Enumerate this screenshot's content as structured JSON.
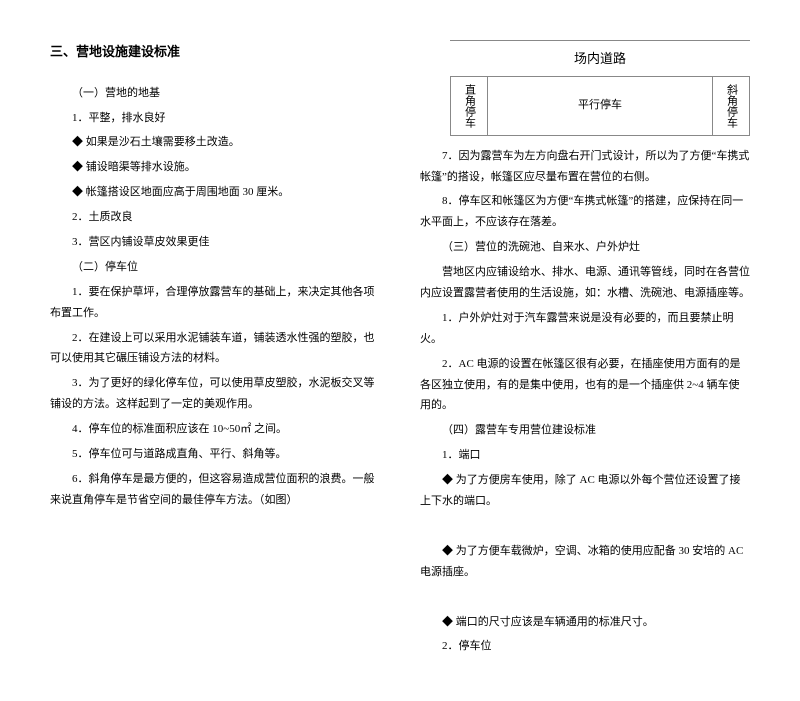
{
  "left": {
    "title": "三、营地设施建设标准",
    "p": [
      "（一）营地的地基",
      "1．平整，排水良好",
      "◆ 如果是沙石土壤需要移土改造。",
      "◆ 铺设暗渠等排水设施。",
      "◆ 帐篷搭设区地面应高于周围地面 30 厘米。",
      "2．土质改良",
      "3．营区内铺设草皮效果更佳",
      "（二）停车位",
      "1．要在保护草坪，合理停放露营车的基础上，来决定其他各项布置工作。",
      "2．在建设上可以采用水泥铺装车道，铺装透水性强的塑胶，也可以使用其它碾压铺设方法的材料。",
      "3．为了更好的绿化停车位，可以使用草皮塑胶，水泥板交叉等铺设的方法。这样起到了一定的美观作用。",
      "4．停车位的标准面积应该在 10~50㎡ 之间。",
      "5．停车位可与道路成直角、平行、斜角等。",
      "6．斜角停车是最方便的，但这容易造成营位面积的浪费。一般来说直角停车是节省空间的最佳停车方法。（如图）"
    ]
  },
  "right": {
    "diagram": {
      "road": "场内道路",
      "left": "直角停车",
      "mid": "平行停车",
      "right": "斜角停车"
    },
    "p": [
      "7．因为露营车为左方向盘右开门式设计，所以为了方便“车携式帐篷”的搭设，帐篷区应尽量布置在营位的右侧。",
      "8．停车区和帐篷区为方便“车携式帐篷”的搭建，应保持在同一水平面上，不应该存在落差。",
      "（三）营位的洗碗池、自来水、户外炉灶",
      "营地区内应铺设给水、排水、电源、通讯等管线，同时在各营位内应设置露营者使用的生活设施，如：水槽、洗碗池、电源插座等。",
      "1．户外炉灶对于汽车露营来说是没有必要的，而且要禁止明火。",
      "2．AC 电源的设置在帐篷区很有必要，在插座使用方面有的是各区独立使用，有的是集中使用，也有的是一个插座供 2~4 辆车使用的。",
      "（四）露营车专用营位建设标准",
      "1．端口",
      "◆ 为了方便房车使用，除了 AC 电源以外每个营位还设置了接上下水的端口。",
      "　",
      "◆ 为了方便车载微炉，空调、冰箱的使用应配备 30 安培的 AC 电源插座。",
      "　",
      "◆ 端口的尺寸应该是车辆通用的标准尺寸。",
      "2．停车位"
    ]
  }
}
